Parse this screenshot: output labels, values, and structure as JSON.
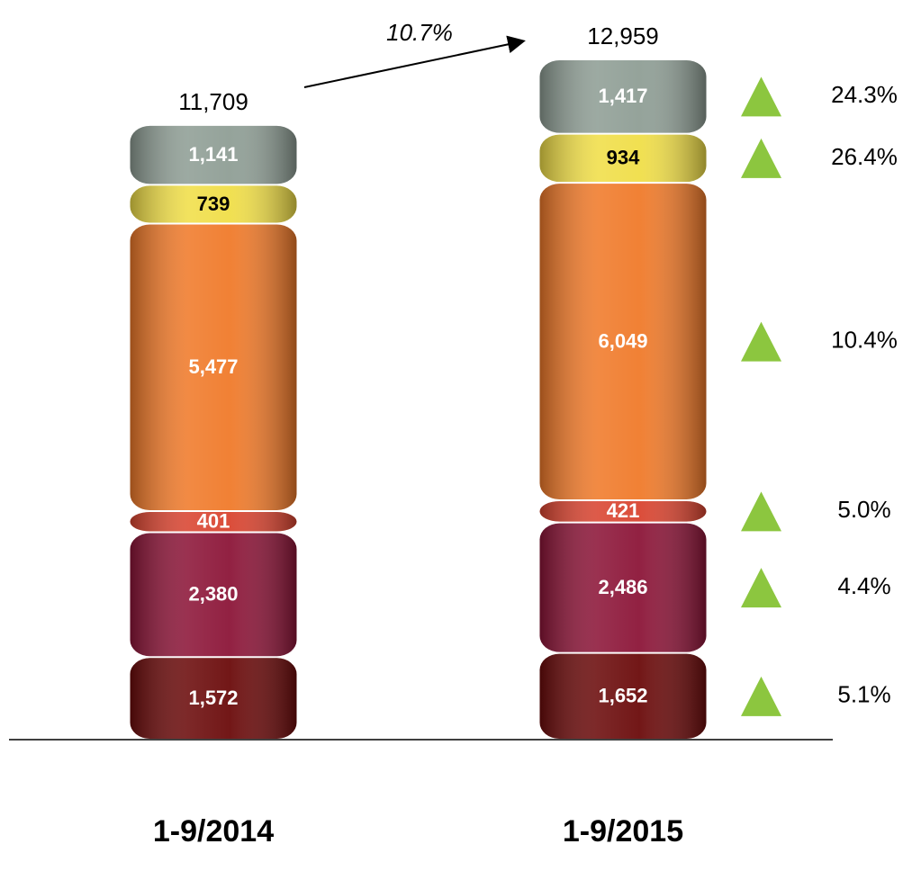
{
  "chart_data": {
    "type": "stacked_bar",
    "categories": [
      "1-9/2014",
      "1-9/2015"
    ],
    "series": [
      {
        "color": "#6b0b0b",
        "values": [
          1572,
          1652
        ],
        "value_labels": [
          "1,572",
          "1,652"
        ],
        "label_color": "#ffffff",
        "change": 5.1,
        "change_label": "5.1%"
      },
      {
        "color": "#8c1538",
        "values": [
          2380,
          2486
        ],
        "value_labels": [
          "2,380",
          "2,486"
        ],
        "label_color": "#ffffff",
        "change": 4.4,
        "change_label": "4.4%"
      },
      {
        "color": "#d94430",
        "values": [
          401,
          421
        ],
        "value_labels": [
          "401",
          "421"
        ],
        "label_color": "#ffffff",
        "change": 5.0,
        "change_label": "5.0%"
      },
      {
        "color": "#f07a2a",
        "values": [
          5477,
          6049
        ],
        "value_labels": [
          "5,477",
          "6,049"
        ],
        "label_color": "#ffffff",
        "change": 10.4,
        "change_label": "10.4%"
      },
      {
        "color": "#f0de48",
        "values": [
          739,
          934
        ],
        "value_labels": [
          "739",
          "934"
        ],
        "label_color": "#000000",
        "change": 26.4,
        "change_label": "26.4%"
      },
      {
        "color": "#8f9e95",
        "values": [
          1141,
          1417
        ],
        "value_labels": [
          "1,141",
          "1,417"
        ],
        "label_color": "#ffffff",
        "change": 24.3,
        "change_label": "24.3%"
      }
    ],
    "totals": [
      11709,
      12959
    ],
    "total_labels": [
      "11,709",
      "12,959"
    ],
    "total_change": 10.7,
    "total_change_label": "10.7%",
    "increase_color": "#8cc63f"
  }
}
